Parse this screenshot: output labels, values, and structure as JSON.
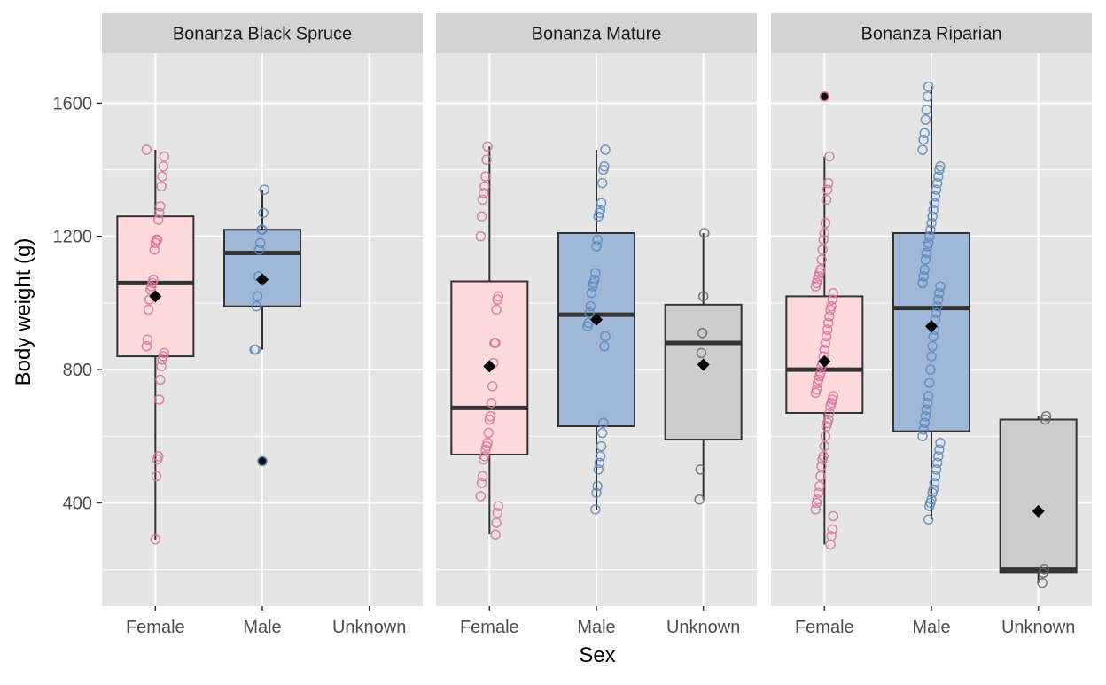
{
  "chart_data": {
    "type": "boxplot",
    "xlabel": "Sex",
    "ylabel": "Body weight (g)",
    "ylim": [
      90,
      1750
    ],
    "yticks": [
      400,
      800,
      1200,
      1600
    ],
    "categories": [
      "Female",
      "Male",
      "Unknown"
    ],
    "colors": {
      "Female_fill": "#FFDADA",
      "Female_point": "#D9739B",
      "Male_fill": "#A0B8D8",
      "Male_point": "#5B8AC0",
      "Unknown_fill": "#CCCCCC",
      "Unknown_point": "#666666",
      "panel_bg": "#E5E5E5",
      "strip_bg": "#D3D3D3",
      "grid": "#FFFFFF",
      "mean_marker": "#000000"
    },
    "grid": true,
    "legend": "none",
    "panels": [
      {
        "title": "Bonanza Black Spruce",
        "groups": [
          {
            "category": "Female",
            "box": {
              "q1": 840,
              "median": 1060,
              "q3": 1260,
              "whisker_low": 290,
              "whisker_high": 1460
            },
            "mean": 1020,
            "points": [
              1460,
              1440,
              1410,
              1380,
              1350,
              1290,
              1270,
              1250,
              1190,
              1190,
              1180,
              1160,
              1070,
              1060,
              1050,
              1040,
              1010,
              980,
              890,
              870,
              850,
              840,
              830,
              810,
              770,
              710,
              540,
              530,
              480,
              290
            ],
            "outliers": []
          },
          {
            "category": "Male",
            "box": {
              "q1": 990,
              "median": 1150,
              "q3": 1220,
              "whisker_low": 860,
              "whisker_high": 1340
            },
            "mean": 1070,
            "points": [
              1340,
              1270,
              1220,
              1220,
              1180,
              1160,
              1080,
              1020,
              990,
              860,
              860,
              525
            ],
            "outliers": [
              525
            ]
          },
          {
            "category": "Unknown",
            "box": null,
            "mean": null,
            "points": [],
            "outliers": []
          }
        ]
      },
      {
        "title": "Bonanza Mature",
        "groups": [
          {
            "category": "Female",
            "box": {
              "q1": 545,
              "median": 685,
              "q3": 1065,
              "whisker_low": 305,
              "whisker_high": 1470
            },
            "mean": 810,
            "points": [
              1470,
              1430,
              1380,
              1350,
              1330,
              1310,
              1260,
              1200,
              1020,
              1010,
              980,
              880,
              880,
              820,
              750,
              700,
              660,
              650,
              610,
              580,
              570,
              560,
              540,
              530,
              480,
              460,
              420,
              390,
              370,
              340,
              305
            ],
            "outliers": []
          },
          {
            "category": "Male",
            "box": {
              "q1": 630,
              "median": 965,
              "q3": 1210,
              "whisker_low": 380,
              "whisker_high": 1460
            },
            "mean": 950,
            "points": [
              1460,
              1410,
              1400,
              1360,
              1300,
              1280,
              1270,
              1260,
              1190,
              1170,
              1090,
              1070,
              1060,
              1050,
              1030,
              990,
              970,
              940,
              930,
              900,
              870,
              640,
              610,
              570,
              540,
              520,
              500,
              450,
              430,
              380
            ],
            "outliers": []
          },
          {
            "category": "Unknown",
            "box": {
              "q1": 590,
              "median": 880,
              "q3": 995,
              "whisker_low": 410,
              "whisker_high": 1210
            },
            "mean": 815,
            "points": [
              1210,
              1020,
              910,
              850,
              500,
              410
            ],
            "outliers": []
          }
        ]
      },
      {
        "title": "Bonanza Riparian",
        "groups": [
          {
            "category": "Female",
            "box": {
              "q1": 670,
              "median": 800,
              "q3": 1020,
              "whisker_low": 275,
              "whisker_high": 1440
            },
            "mean": 825,
            "points": [
              1440,
              1360,
              1340,
              1310,
              1240,
              1210,
              1190,
              1160,
              1130,
              1100,
              1090,
              1080,
              1070,
              1060,
              1050,
              1030,
              1010,
              990,
              980,
              960,
              940,
              920,
              900,
              880,
              860,
              840,
              820,
              810,
              790,
              780,
              770,
              760,
              740,
              730,
              720,
              710,
              700,
              690,
              670,
              650,
              640,
              630,
              600,
              570,
              540,
              530,
              510,
              480,
              450,
              430,
              410,
              400,
              380,
              360,
              320,
              300,
              275,
              1620
            ],
            "outliers": [
              1620
            ]
          },
          {
            "category": "Male",
            "box": {
              "q1": 615,
              "median": 985,
              "q3": 1210,
              "whisker_low": 350,
              "whisker_high": 1650
            },
            "mean": 930,
            "points": [
              1650,
              1620,
              1580,
              1550,
              1510,
              1490,
              1460,
              1410,
              1400,
              1380,
              1360,
              1340,
              1320,
              1300,
              1280,
              1260,
              1240,
              1220,
              1200,
              1180,
              1170,
              1150,
              1130,
              1100,
              1080,
              1060,
              1050,
              1030,
              1010,
              990,
              970,
              950,
              920,
              900,
              870,
              840,
              800,
              760,
              720,
              700,
              680,
              660,
              640,
              620,
              600,
              580,
              560,
              540,
              520,
              500,
              480,
              460,
              440,
              430,
              410,
              400,
              390,
              350
            ],
            "outliers": []
          },
          {
            "category": "Unknown",
            "box": {
              "q1": 190,
              "median": 200,
              "q3": 650,
              "whisker_low": 160,
              "whisker_high": 660
            },
            "mean": 375,
            "points": [
              660,
              650,
              200,
              190,
              160
            ],
            "outliers": []
          }
        ]
      }
    ]
  }
}
